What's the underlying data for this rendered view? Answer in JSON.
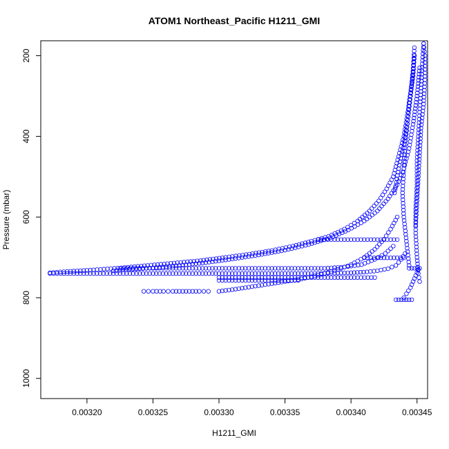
{
  "chart_data": {
    "type": "scatter",
    "title": "ATOM1 Northeast_Pacific H1211_GMI",
    "xlabel": "H1211_GMI",
    "ylabel": "Pressure (mbar)",
    "xlim": [
      0.003165,
      0.003458
    ],
    "ylim": [
      1050,
      163
    ],
    "y_inverted": true,
    "x_ticks": [
      0.0032,
      0.00325,
      0.0033,
      0.00335,
      0.0034,
      0.00345
    ],
    "x_tick_labels": [
      "0.00320",
      "0.00325",
      "0.00330",
      "0.00335",
      "0.00340",
      "0.00345"
    ],
    "y_ticks": [
      200,
      400,
      600,
      800,
      1000
    ],
    "y_tick_labels": [
      "200",
      "400",
      "600",
      "800",
      "1000"
    ],
    "grid": false,
    "marker": "open-circle",
    "color": "#0000ff",
    "series": [
      {
        "x": [
          0.003448,
          0.003446,
          0.003443,
          0.00344,
          0.003436,
          0.003432,
          0.003427,
          0.003421,
          0.003414,
          0.003405,
          0.003395,
          0.003383,
          0.00337,
          0.003356,
          0.00334,
          0.003323,
          0.003305,
          0.003286,
          0.003266,
          0.003246,
          0.003226,
          0.003205,
          0.003185,
          0.003172
        ],
        "y": [
          200,
          270,
          340,
          400,
          450,
          500,
          530,
          560,
          585,
          610,
          630,
          648,
          660,
          672,
          683,
          692,
          700,
          708,
          714,
          720,
          726,
          731,
          735,
          738
        ]
      },
      {
        "x": [
          0.003452,
          0.00345,
          0.003447,
          0.003444,
          0.00344,
          0.003435,
          0.003428,
          0.00342,
          0.00341,
          0.003398,
          0.003384,
          0.003368,
          0.00335,
          0.00333,
          0.00331,
          0.00329,
          0.00327,
          0.00325,
          0.003232,
          0.00322
        ],
        "y": [
          230,
          300,
          370,
          430,
          480,
          520,
          555,
          585,
          610,
          632,
          652,
          668,
          682,
          694,
          704,
          713,
          720,
          726,
          730,
          733
        ]
      },
      {
        "x": [
          0.003172,
          0.00318,
          0.003195,
          0.00321,
          0.00323,
          0.00325,
          0.00327,
          0.00329,
          0.00331,
          0.00333,
          0.00335,
          0.00337,
          0.003385,
          0.0034,
          0.003412,
          0.00342,
          0.003428,
          0.003434,
          0.003438,
          0.003441
        ],
        "y": [
          740,
          740,
          740,
          740,
          740,
          740,
          740,
          740,
          740,
          740,
          740,
          740,
          739,
          738,
          736,
          733,
          728,
          720,
          705,
          690
        ]
      },
      {
        "x": [
          0.003225,
          0.00324,
          0.00326,
          0.00328,
          0.0033,
          0.00332,
          0.00334,
          0.00336,
          0.00338,
          0.003395,
          0.003408,
          0.003418,
          0.003426,
          0.003432
        ],
        "y": [
          727,
          727,
          727,
          727,
          727,
          727,
          727,
          727,
          727,
          724,
          718,
          705,
          690,
          672
        ]
      },
      {
        "x": [
          0.0033,
          0.00331,
          0.00332,
          0.00333,
          0.00334,
          0.00335,
          0.00336,
          0.00337,
          0.00338,
          0.00339,
          0.0034,
          0.00341,
          0.003418,
          0.003425,
          0.00343,
          0.003435
        ],
        "y": [
          784,
          780,
          775,
          770,
          765,
          760,
          755,
          748,
          740,
          730,
          718,
          700,
          680,
          655,
          630,
          600
        ]
      },
      {
        "x": [
          0.003243,
          0.00325,
          0.003258,
          0.003265,
          0.003275,
          0.003285,
          0.003292
        ],
        "y": [
          784,
          784,
          784,
          784,
          784,
          784,
          784
        ]
      },
      {
        "x": [
          0.0033,
          0.00331,
          0.00332,
          0.00333,
          0.00334,
          0.00335,
          0.00336
        ],
        "y": [
          757,
          757,
          757,
          757,
          757,
          757,
          757
        ]
      },
      {
        "x": [
          0.0033,
          0.003315,
          0.00333,
          0.003345,
          0.00336,
          0.003375,
          0.00339,
          0.003405,
          0.003418
        ],
        "y": [
          750,
          750,
          750,
          750,
          750,
          750,
          750,
          750,
          750
        ]
      },
      {
        "x": [
          0.003375,
          0.003385,
          0.003395,
          0.003405,
          0.003415,
          0.003425,
          0.003435
        ],
        "y": [
          656,
          656,
          656,
          656,
          656,
          656,
          656
        ]
      },
      {
        "x": [
          0.00341,
          0.003415,
          0.00342,
          0.003425,
          0.00343,
          0.003435,
          0.00344
        ],
        "y": [
          701,
          701,
          701,
          701,
          701,
          701,
          701
        ]
      },
      {
        "x": [
          0.003434,
          0.003436,
          0.003438,
          0.00344,
          0.003442,
          0.003444,
          0.003446
        ],
        "y": [
          805,
          805,
          805,
          805,
          805,
          805,
          805
        ]
      },
      {
        "x": [
          0.003444,
          0.003446,
          0.003448,
          0.00345,
          0.003452
        ],
        "y": [
          727,
          727,
          727,
          727,
          727
        ]
      },
      {
        "x": [
          0.003455,
          0.003454,
          0.003453,
          0.003452,
          0.003451,
          0.00345,
          0.00345,
          0.003449,
          0.003449,
          0.00345,
          0.003451,
          0.003452
        ],
        "y": [
          170,
          220,
          280,
          340,
          400,
          460,
          520,
          580,
          640,
          700,
          740,
          760
        ]
      },
      {
        "x": [
          0.003448,
          0.003447,
          0.003445,
          0.003443,
          0.003441,
          0.00344,
          0.003439,
          0.00344,
          0.003442,
          0.003444
        ],
        "y": [
          180,
          240,
          300,
          360,
          420,
          480,
          540,
          600,
          660,
          720
        ]
      },
      {
        "x": [
          0.003455,
          0.003456,
          0.003456,
          0.003455,
          0.003453,
          0.003452,
          0.003451,
          0.00345,
          0.003449
        ],
        "y": [
          170,
          200,
          260,
          320,
          380,
          440,
          500,
          560,
          620
        ]
      },
      {
        "x": [
          0.003433,
          0.003436,
          0.00344,
          0.003443,
          0.003445,
          0.003447,
          0.003448
        ],
        "y": [
          540,
          480,
          420,
          360,
          300,
          250,
          200
        ]
      },
      {
        "x": [
          0.00344,
          0.003442,
          0.003445,
          0.003447,
          0.003449,
          0.003451
        ],
        "y": [
          800,
          790,
          775,
          760,
          745,
          730
        ]
      }
    ]
  }
}
